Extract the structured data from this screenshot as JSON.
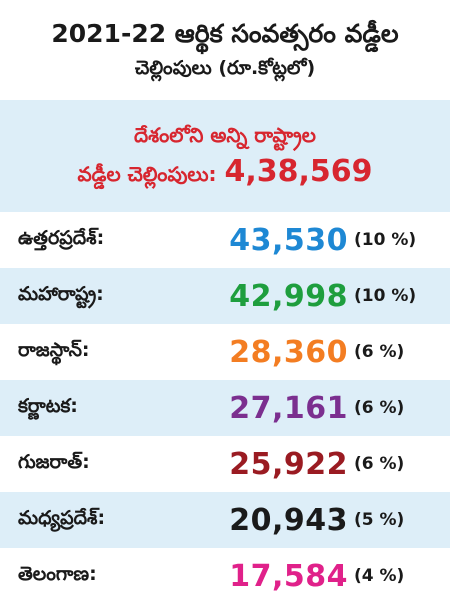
{
  "header": {
    "title_line1": "2021-22 ఆర్థిక సంవత్సరం వడ్డీల",
    "title_line2": "చెల్లింపులు (రూ.కోట్లలో)"
  },
  "total": {
    "line1": "దేశంలోని అన్ని రాష్ట్రాల",
    "label": "వడ్డీల చెల్లింపులు:",
    "value": "4,38,569",
    "color": "#d7262f"
  },
  "rows": [
    {
      "state": "ఉత్తరప్రదేశ్:",
      "value": "43,530",
      "pct": "(10 %)",
      "color": "#1e88d4"
    },
    {
      "state": "మహారాష్ట్ర:",
      "value": "42,998",
      "pct": "(10 %)",
      "color": "#1e9e3e"
    },
    {
      "state": "రాజస్థాన్:",
      "value": "28,360",
      "pct": "(6 %)",
      "color": "#f37d22"
    },
    {
      "state": "కర్ణాటక:",
      "value": "27,161",
      "pct": "(6 %)",
      "color": "#7b2f8f"
    },
    {
      "state": "గుజరాత్:",
      "value": "25,922",
      "pct": "(6 %)",
      "color": "#9a1b22"
    },
    {
      "state": "మధ్యప్రదేశ్:",
      "value": "20,943",
      "pct": "(5 %)",
      "color": "#1a1a1a"
    },
    {
      "state": "తెలంగాణ:",
      "value": "17,584",
      "pct": "(4 %)",
      "color": "#e0218a"
    }
  ]
}
